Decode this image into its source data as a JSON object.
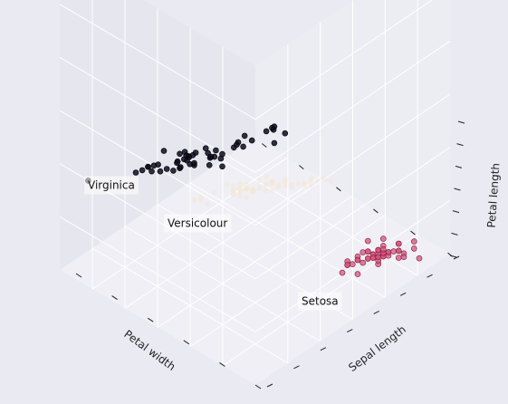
{
  "chart_data": {
    "type": "scatter",
    "projection": "3d",
    "title": "",
    "xlabel": "Petal width",
    "ylabel": "Sepal length",
    "zlabel": "Petal length",
    "grid": true,
    "colors": {
      "background": "#eaeaf2",
      "pane_left": "#e6e6ee",
      "pane_right": "#ececf3",
      "pane_floor": "#efeff5",
      "grid": "#ffffff",
      "virginica": "#0d0a1e",
      "versicolour": "#f5e6c8",
      "setosa": "#d8527a"
    },
    "annotations": [
      {
        "label": "Virginica"
      },
      {
        "label": "Versicolour"
      },
      {
        "label": "Setosa"
      }
    ],
    "series": [
      {
        "id": "virginica",
        "points": [
          [
            2.5,
            6.3,
            6.0
          ],
          [
            1.9,
            5.8,
            5.1
          ],
          [
            2.1,
            7.1,
            5.9
          ],
          [
            1.8,
            6.3,
            5.6
          ],
          [
            2.2,
            6.5,
            5.8
          ],
          [
            2.1,
            7.6,
            6.6
          ],
          [
            1.7,
            4.9,
            4.5
          ],
          [
            1.8,
            7.3,
            6.3
          ],
          [
            1.8,
            6.7,
            5.8
          ],
          [
            2.5,
            7.2,
            6.1
          ],
          [
            2.0,
            6.5,
            5.1
          ],
          [
            1.9,
            6.4,
            5.3
          ],
          [
            2.1,
            6.8,
            5.5
          ],
          [
            2.0,
            5.7,
            5.0
          ],
          [
            2.4,
            5.8,
            5.1
          ],
          [
            2.3,
            6.4,
            5.3
          ],
          [
            1.8,
            6.5,
            5.5
          ],
          [
            2.2,
            7.7,
            6.7
          ],
          [
            2.3,
            7.7,
            6.9
          ],
          [
            1.5,
            6.0,
            5.0
          ],
          [
            2.3,
            6.9,
            5.7
          ],
          [
            2.0,
            5.6,
            4.9
          ],
          [
            2.0,
            7.7,
            6.7
          ],
          [
            1.8,
            6.3,
            4.9
          ],
          [
            2.1,
            6.7,
            5.7
          ],
          [
            1.8,
            7.2,
            6.0
          ],
          [
            1.8,
            6.2,
            4.8
          ],
          [
            1.8,
            6.1,
            4.9
          ],
          [
            2.1,
            6.4,
            5.6
          ],
          [
            1.6,
            7.2,
            5.8
          ],
          [
            1.9,
            7.4,
            6.1
          ],
          [
            2.0,
            7.9,
            6.4
          ],
          [
            2.2,
            6.4,
            5.6
          ],
          [
            1.5,
            6.3,
            5.1
          ],
          [
            1.4,
            6.1,
            5.6
          ],
          [
            2.3,
            7.7,
            6.1
          ],
          [
            2.4,
            6.3,
            5.6
          ],
          [
            1.8,
            6.4,
            5.5
          ],
          [
            1.8,
            6.0,
            4.8
          ],
          [
            2.1,
            6.9,
            5.4
          ],
          [
            2.4,
            6.7,
            5.6
          ],
          [
            2.3,
            6.9,
            5.1
          ],
          [
            1.9,
            5.8,
            5.1
          ],
          [
            2.3,
            6.8,
            5.9
          ],
          [
            2.5,
            6.7,
            5.7
          ],
          [
            2.3,
            6.7,
            5.2
          ],
          [
            1.9,
            6.3,
            5.0
          ],
          [
            2.0,
            6.5,
            5.2
          ],
          [
            2.3,
            6.2,
            5.4
          ],
          [
            1.8,
            5.9,
            5.1
          ]
        ]
      },
      {
        "id": "versicolour",
        "points": [
          [
            1.4,
            7.0,
            4.7
          ],
          [
            1.5,
            6.4,
            4.5
          ],
          [
            1.5,
            6.9,
            4.9
          ],
          [
            1.3,
            5.5,
            4.0
          ],
          [
            1.5,
            6.5,
            4.6
          ],
          [
            1.3,
            5.7,
            4.5
          ],
          [
            1.6,
            6.3,
            4.7
          ],
          [
            1.0,
            4.9,
            3.3
          ],
          [
            1.3,
            6.6,
            4.6
          ],
          [
            1.4,
            5.2,
            3.9
          ],
          [
            1.0,
            5.0,
            3.5
          ],
          [
            1.5,
            5.9,
            4.2
          ],
          [
            1.0,
            6.0,
            4.0
          ],
          [
            1.4,
            6.1,
            4.7
          ],
          [
            1.3,
            5.6,
            3.6
          ],
          [
            1.4,
            6.7,
            4.4
          ],
          [
            1.5,
            5.6,
            4.5
          ],
          [
            1.0,
            5.8,
            4.1
          ],
          [
            1.5,
            6.2,
            4.5
          ],
          [
            1.1,
            5.6,
            3.9
          ],
          [
            1.8,
            5.9,
            4.8
          ],
          [
            1.3,
            6.1,
            4.0
          ],
          [
            1.5,
            6.3,
            4.9
          ],
          [
            1.2,
            6.1,
            4.7
          ],
          [
            1.3,
            6.4,
            4.3
          ],
          [
            1.4,
            6.6,
            4.4
          ],
          [
            1.4,
            6.8,
            4.8
          ],
          [
            1.7,
            6.7,
            5.0
          ],
          [
            1.5,
            6.0,
            4.5
          ],
          [
            1.0,
            5.7,
            3.5
          ],
          [
            1.1,
            5.5,
            3.8
          ],
          [
            1.0,
            5.5,
            3.7
          ],
          [
            1.2,
            5.8,
            3.9
          ],
          [
            1.6,
            6.0,
            5.1
          ],
          [
            1.5,
            5.4,
            4.5
          ],
          [
            1.6,
            6.0,
            4.5
          ],
          [
            1.5,
            6.7,
            4.7
          ],
          [
            1.3,
            6.3,
            4.4
          ],
          [
            1.3,
            5.6,
            4.1
          ],
          [
            1.3,
            5.5,
            4.0
          ],
          [
            1.2,
            5.5,
            4.4
          ],
          [
            1.4,
            6.1,
            4.6
          ],
          [
            1.2,
            5.8,
            4.0
          ],
          [
            1.0,
            5.0,
            3.3
          ],
          [
            1.3,
            5.6,
            4.2
          ],
          [
            1.2,
            5.7,
            4.2
          ],
          [
            1.3,
            5.7,
            4.2
          ],
          [
            1.3,
            6.2,
            4.3
          ],
          [
            1.1,
            5.1,
            3.0
          ],
          [
            1.3,
            5.7,
            4.1
          ]
        ]
      },
      {
        "id": "setosa",
        "points": [
          [
            0.2,
            5.1,
            1.4
          ],
          [
            0.2,
            4.9,
            1.4
          ],
          [
            0.2,
            4.7,
            1.3
          ],
          [
            0.2,
            4.6,
            1.5
          ],
          [
            0.2,
            5.0,
            1.4
          ],
          [
            0.4,
            5.4,
            1.7
          ],
          [
            0.3,
            4.6,
            1.4
          ],
          [
            0.2,
            5.0,
            1.5
          ],
          [
            0.2,
            4.4,
            1.4
          ],
          [
            0.1,
            4.9,
            1.5
          ],
          [
            0.2,
            5.4,
            1.5
          ],
          [
            0.2,
            4.8,
            1.6
          ],
          [
            0.1,
            4.8,
            1.4
          ],
          [
            0.1,
            4.3,
            1.1
          ],
          [
            0.2,
            5.8,
            1.2
          ],
          [
            0.4,
            5.7,
            1.5
          ],
          [
            0.4,
            5.4,
            1.3
          ],
          [
            0.3,
            5.1,
            1.4
          ],
          [
            0.3,
            5.7,
            1.7
          ],
          [
            0.3,
            5.1,
            1.5
          ],
          [
            0.2,
            5.4,
            1.7
          ],
          [
            0.4,
            5.1,
            1.5
          ],
          [
            0.2,
            4.6,
            1.0
          ],
          [
            0.5,
            5.1,
            1.7
          ],
          [
            0.2,
            4.8,
            1.9
          ],
          [
            0.2,
            5.0,
            1.6
          ],
          [
            0.4,
            5.0,
            1.6
          ],
          [
            0.2,
            5.2,
            1.5
          ],
          [
            0.2,
            5.2,
            1.4
          ],
          [
            0.2,
            4.7,
            1.6
          ],
          [
            0.2,
            4.8,
            1.6
          ],
          [
            0.4,
            5.4,
            1.5
          ],
          [
            0.1,
            5.2,
            1.5
          ],
          [
            0.2,
            5.5,
            1.4
          ],
          [
            0.2,
            4.9,
            1.5
          ],
          [
            0.2,
            5.0,
            1.2
          ],
          [
            0.2,
            5.5,
            1.3
          ],
          [
            0.1,
            4.9,
            1.4
          ],
          [
            0.2,
            4.4,
            1.3
          ],
          [
            0.2,
            5.1,
            1.5
          ],
          [
            0.3,
            5.0,
            1.3
          ],
          [
            0.3,
            4.5,
            1.3
          ],
          [
            0.2,
            4.4,
            1.3
          ],
          [
            0.6,
            5.0,
            1.6
          ],
          [
            0.4,
            5.1,
            1.9
          ],
          [
            0.3,
            4.8,
            1.4
          ],
          [
            0.2,
            5.1,
            1.6
          ],
          [
            0.2,
            4.6,
            1.4
          ],
          [
            0.2,
            5.3,
            1.5
          ],
          [
            0.2,
            5.0,
            1.4
          ]
        ]
      }
    ]
  }
}
